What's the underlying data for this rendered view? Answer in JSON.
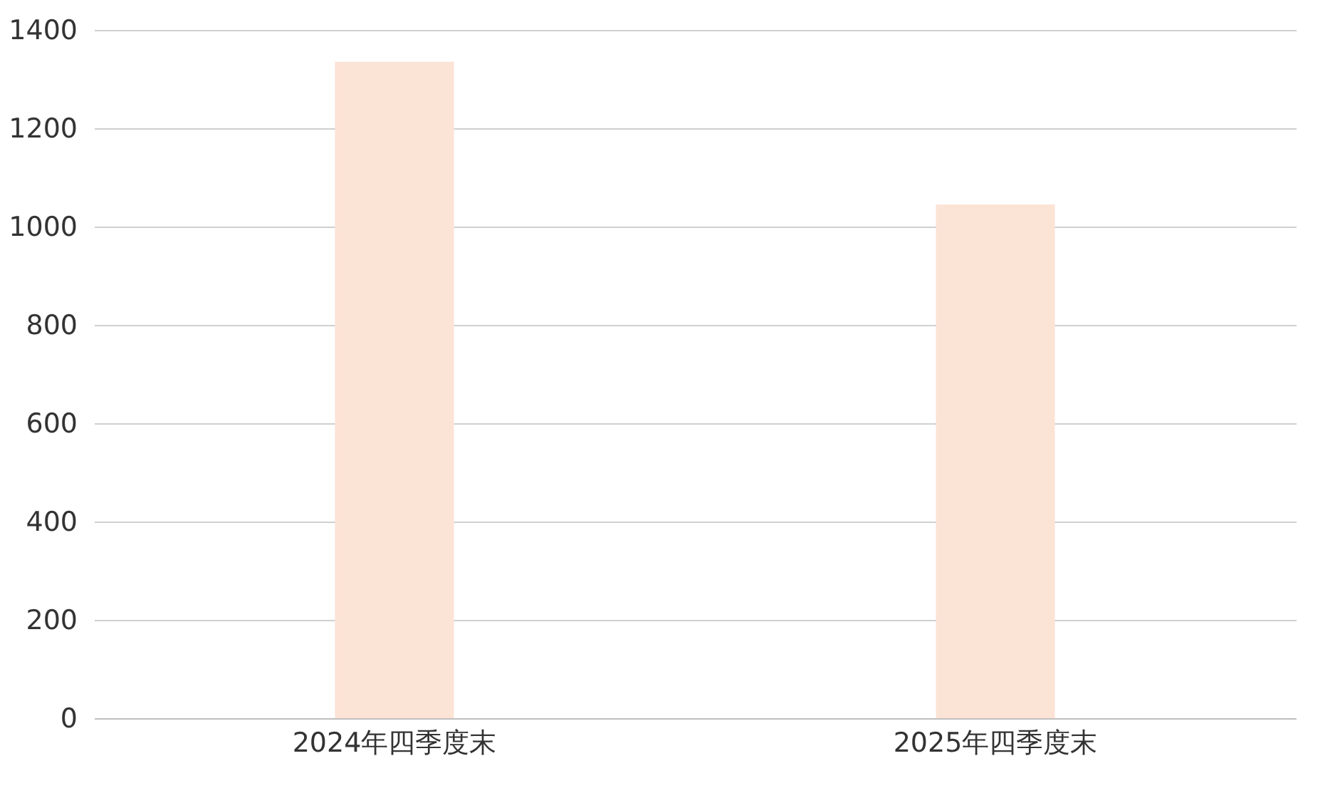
{
  "chart_data": {
    "type": "bar",
    "categories": [
      "2024年四季度末",
      "2025年四季度末"
    ],
    "values": [
      1335,
      1045
    ],
    "color": "#fbe3d6",
    "ylim": [
      0,
      1400
    ],
    "yticks": [
      0,
      200,
      400,
      600,
      800,
      1000,
      1200,
      1400
    ],
    "grid": "y"
  }
}
